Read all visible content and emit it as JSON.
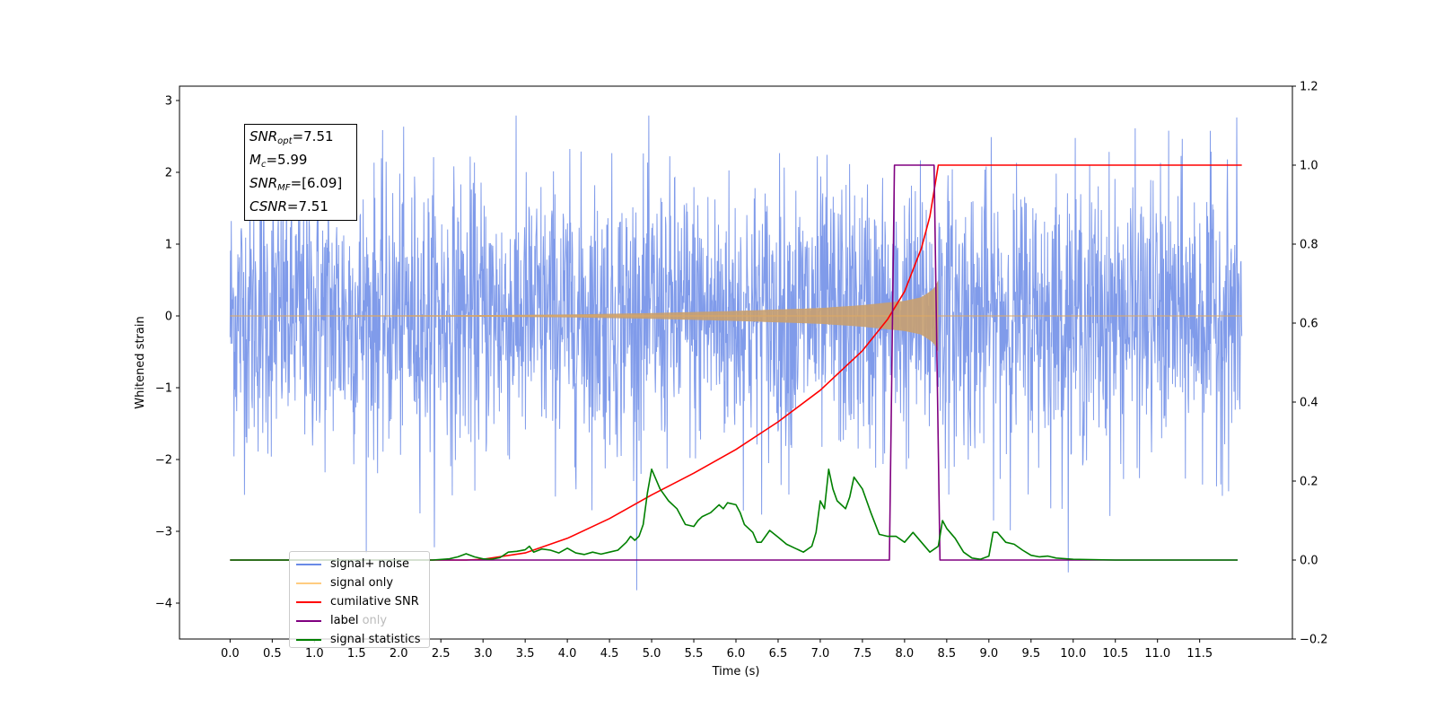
{
  "chart_data": {
    "type": "line",
    "title": "",
    "xlabel": "Time (s)",
    "ylabel": "Whitened strain",
    "xlim": [
      -0.6,
      12.6
    ],
    "ylim": [
      -4.5,
      3.2
    ],
    "y2lim": [
      -0.2,
      1.2
    ],
    "xticks": [
      0.0,
      0.5,
      1.0,
      1.5,
      2.0,
      2.5,
      3.0,
      3.5,
      4.0,
      4.5,
      5.0,
      5.5,
      6.0,
      6.5,
      7.0,
      7.5,
      8.0,
      8.5,
      9.0,
      9.5,
      10.0,
      10.5,
      11.0,
      11.5
    ],
    "xtick_labels": [
      "0.0",
      "0.5",
      "1.0",
      "1.5",
      "2.0",
      "2.5",
      "3.0",
      "3.5",
      "4.0",
      "4.5",
      "5.0",
      "5.5",
      "6.0",
      "6.5",
      "7.0",
      "7.5",
      "8.0",
      "8.5",
      "9.0",
      "9.5",
      "10.0",
      "10.5",
      "11.0",
      "11.5"
    ],
    "yticks": [
      3,
      2,
      1,
      0,
      -1,
      -2,
      -3,
      -4
    ],
    "ytick_labels": [
      "3",
      "2",
      "1",
      "0",
      "−1",
      "−2",
      "−3",
      "−4"
    ],
    "y2ticks": [
      1.2,
      1.0,
      0.8,
      0.6,
      0.4,
      0.2,
      0.0,
      -0.2
    ],
    "y2tick_labels": [
      "1.2",
      "1.0",
      "0.8",
      "0.6",
      "0.4",
      "0.2",
      "0.0",
      "−0.2"
    ],
    "grid": false,
    "legend_position": "lower-left",
    "series": [
      {
        "name": "signal+ noise",
        "axis": "left",
        "color": "#6a8ae6",
        "noise_envelope": 1.55,
        "t_range": [
          0.0,
          12.0
        ]
      },
      {
        "name": "signal only",
        "axis": "left",
        "color": "#c8a070",
        "envelope_x": [
          0.0,
          2.0,
          3.0,
          4.0,
          5.0,
          6.0,
          7.0,
          7.5,
          8.0,
          8.2,
          8.35,
          8.4
        ],
        "envelope_y": [
          0.005,
          0.008,
          0.012,
          0.02,
          0.04,
          0.07,
          0.11,
          0.15,
          0.21,
          0.26,
          0.38,
          0.5
        ]
      },
      {
        "name": "cumilative SNR",
        "axis": "right",
        "color": "#ff0000",
        "x": [
          0.0,
          2.8,
          3.0,
          3.5,
          4.0,
          4.5,
          5.0,
          5.5,
          6.0,
          6.5,
          7.0,
          7.5,
          7.8,
          8.0,
          8.2,
          8.3,
          8.4,
          12.0
        ],
        "y": [
          0.0,
          0.0,
          0.002,
          0.018,
          0.055,
          0.105,
          0.165,
          0.22,
          0.28,
          0.35,
          0.43,
          0.53,
          0.61,
          0.68,
          0.79,
          0.87,
          1.0,
          1.0
        ]
      },
      {
        "name": "label",
        "axis": "right",
        "color": "#800080",
        "x": [
          0.0,
          7.82,
          7.88,
          8.35,
          8.42,
          11.95
        ],
        "y": [
          0.0,
          0.0,
          1.0,
          1.0,
          0.0,
          0.0
        ]
      },
      {
        "name": "label only",
        "axis": "right",
        "color": "#800080",
        "hidden": true,
        "x": [],
        "y": []
      },
      {
        "name": "signal statistics",
        "axis": "right",
        "color": "#008000",
        "x": [
          0.0,
          2.4,
          2.6,
          2.7,
          2.8,
          2.9,
          3.0,
          3.1,
          3.2,
          3.3,
          3.4,
          3.5,
          3.55,
          3.6,
          3.7,
          3.8,
          3.9,
          4.0,
          4.1,
          4.2,
          4.3,
          4.4,
          4.5,
          4.6,
          4.7,
          4.75,
          4.8,
          4.85,
          4.9,
          4.95,
          5.0,
          5.1,
          5.2,
          5.3,
          5.4,
          5.5,
          5.55,
          5.6,
          5.7,
          5.8,
          5.85,
          5.9,
          6.0,
          6.05,
          6.1,
          6.2,
          6.25,
          6.3,
          6.4,
          6.5,
          6.6,
          6.7,
          6.8,
          6.9,
          6.95,
          7.0,
          7.05,
          7.1,
          7.15,
          7.2,
          7.3,
          7.35,
          7.4,
          7.5,
          7.55,
          7.6,
          7.7,
          7.8,
          7.9,
          8.0,
          8.1,
          8.2,
          8.3,
          8.4,
          8.45,
          8.5,
          8.6,
          8.7,
          8.8,
          8.9,
          9.0,
          9.05,
          9.1,
          9.2,
          9.3,
          9.4,
          9.5,
          9.6,
          9.7,
          9.8,
          10.0,
          10.5,
          11.95
        ],
        "y": [
          0.0,
          0.0,
          0.003,
          0.008,
          0.016,
          0.008,
          0.003,
          0.002,
          0.006,
          0.02,
          0.022,
          0.026,
          0.035,
          0.02,
          0.028,
          0.025,
          0.018,
          0.03,
          0.018,
          0.014,
          0.02,
          0.015,
          0.02,
          0.025,
          0.045,
          0.06,
          0.05,
          0.06,
          0.09,
          0.17,
          0.23,
          0.18,
          0.15,
          0.13,
          0.09,
          0.085,
          0.1,
          0.11,
          0.12,
          0.14,
          0.13,
          0.145,
          0.14,
          0.12,
          0.09,
          0.07,
          0.045,
          0.045,
          0.075,
          0.058,
          0.04,
          0.03,
          0.02,
          0.035,
          0.07,
          0.15,
          0.13,
          0.23,
          0.18,
          0.15,
          0.13,
          0.16,
          0.21,
          0.18,
          0.15,
          0.12,
          0.065,
          0.06,
          0.06,
          0.045,
          0.07,
          0.045,
          0.02,
          0.035,
          0.1,
          0.08,
          0.055,
          0.02,
          0.005,
          0.002,
          0.01,
          0.07,
          0.07,
          0.045,
          0.04,
          0.025,
          0.012,
          0.008,
          0.01,
          0.005,
          0.002,
          0.0,
          0.0
        ]
      }
    ]
  },
  "infobox": {
    "snr_opt": "SNR",
    "snr_opt_sub": "opt",
    "snr_opt_val": "=7.51",
    "mc": "M",
    "mc_sub": "c",
    "mc_val": "=5.99",
    "snr_mf": "SNR",
    "snr_mf_sub": "MF",
    "snr_mf_val": "=[6.09]",
    "csnr": "CSNR",
    "csnr_val": "=7.51"
  }
}
